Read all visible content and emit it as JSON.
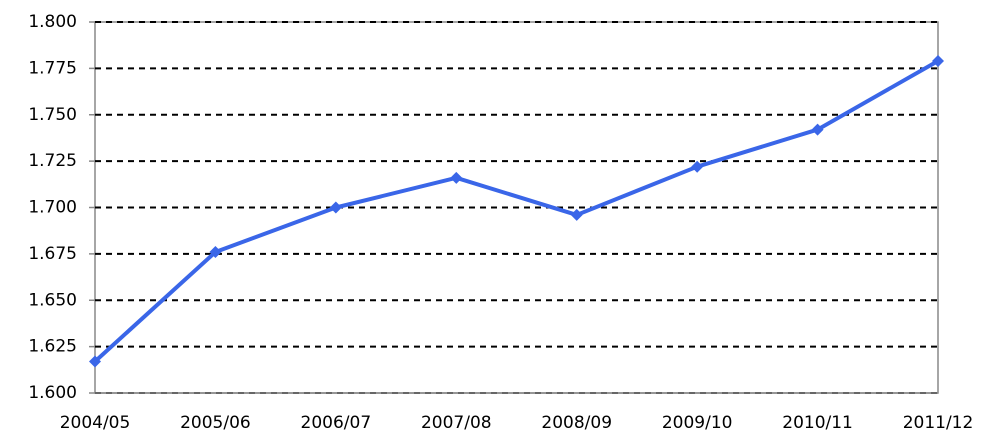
{
  "chart_data": {
    "type": "line",
    "categories": [
      "2004/05",
      "2005/06",
      "2006/07",
      "2007/08",
      "2008/09",
      "2009/10",
      "2010/11",
      "2011/12"
    ],
    "series": [
      {
        "name": "Value",
        "color": "#3a66e8",
        "values": [
          1.617,
          1.676,
          1.7,
          1.716,
          1.696,
          1.722,
          1.742,
          1.779
        ]
      }
    ],
    "ylim": [
      1.6,
      1.8
    ],
    "yticks": [
      {
        "value": 1.6,
        "label": "1.600"
      },
      {
        "value": 1.625,
        "label": "1.625"
      },
      {
        "value": 1.65,
        "label": "1.650"
      },
      {
        "value": 1.675,
        "label": "1.675"
      },
      {
        "value": 1.7,
        "label": "1.700"
      },
      {
        "value": 1.725,
        "label": "1.725"
      },
      {
        "value": 1.75,
        "label": "1.750"
      },
      {
        "value": 1.775,
        "label": "1.775"
      },
      {
        "value": 1.8,
        "label": "1.800"
      }
    ],
    "grid": true
  }
}
